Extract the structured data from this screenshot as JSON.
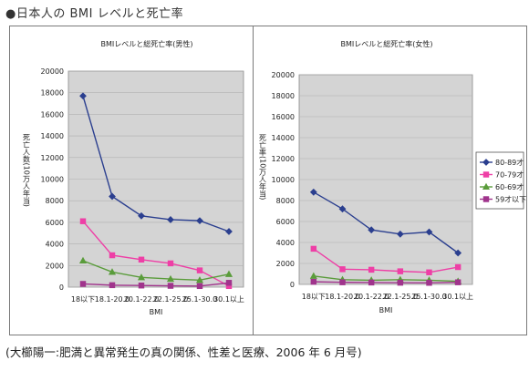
{
  "heading": "●日本人の BMI レベルと死亡率",
  "caption": "(大櫛陽一:肥満と異常発生の真の関係、性差と医療、2006 年 6 月号)",
  "colors": {
    "series": [
      "#2b3f8f",
      "#ee3fa6",
      "#5a9c3b",
      "#a0348c"
    ]
  },
  "chart_data": [
    {
      "type": "line",
      "title": "BMIレベルと総死亡率(男性)",
      "xlabel": "BMI",
      "ylabel": "死亡人数(10万人年当)",
      "ylim": [
        0,
        20000
      ],
      "yticks": [
        "0",
        "2000",
        "4000",
        "6000",
        "8000",
        "10000",
        "12000",
        "14000",
        "16000",
        "18000",
        "20000"
      ],
      "categories": [
        "18以下",
        "18.1-20.0",
        "20.1-22.0",
        "22.1-25.0",
        "25.1-30.0",
        "30.1以上"
      ],
      "grid": true,
      "legend": "none",
      "series": [
        {
          "name": "80-89才",
          "marker": "diamond",
          "values": [
            17700,
            8400,
            6600,
            6250,
            6150,
            5150
          ]
        },
        {
          "name": "70-79才",
          "marker": "square",
          "values": [
            6100,
            2950,
            2550,
            2200,
            1550,
            100
          ]
        },
        {
          "name": "60-69才",
          "marker": "triangle",
          "values": [
            2450,
            1400,
            900,
            750,
            650,
            1200
          ]
        },
        {
          "name": "59才以下",
          "marker": "square",
          "values": [
            300,
            180,
            150,
            120,
            100,
            400
          ]
        }
      ]
    },
    {
      "type": "line",
      "title": "BMIレベルと総死亡率(女性)",
      "xlabel": "BMI",
      "ylabel": "死亡率(10万人年当)",
      "ylim": [
        0,
        20000
      ],
      "yticks": [
        "0",
        "2000",
        "4000",
        "6000",
        "8000",
        "10000",
        "12000",
        "14000",
        "16000",
        "18000",
        "20000"
      ],
      "categories": [
        "18以下",
        "18.1-20.0",
        "20.1-22.0",
        "22.1-25.0",
        "25.1-30.0",
        "30.1以上"
      ],
      "grid": true,
      "legend": "right",
      "series": [
        {
          "name": "80-89才",
          "marker": "diamond",
          "values": [
            8800,
            7200,
            5200,
            4800,
            5000,
            3000
          ]
        },
        {
          "name": "70-79才",
          "marker": "square",
          "values": [
            3400,
            1450,
            1400,
            1250,
            1150,
            1650
          ]
        },
        {
          "name": "60-69才",
          "marker": "triangle",
          "values": [
            800,
            450,
            400,
            450,
            400,
            300
          ]
        },
        {
          "name": "59才以下",
          "marker": "square",
          "values": [
            250,
            200,
            180,
            160,
            150,
            200
          ]
        }
      ]
    }
  ]
}
